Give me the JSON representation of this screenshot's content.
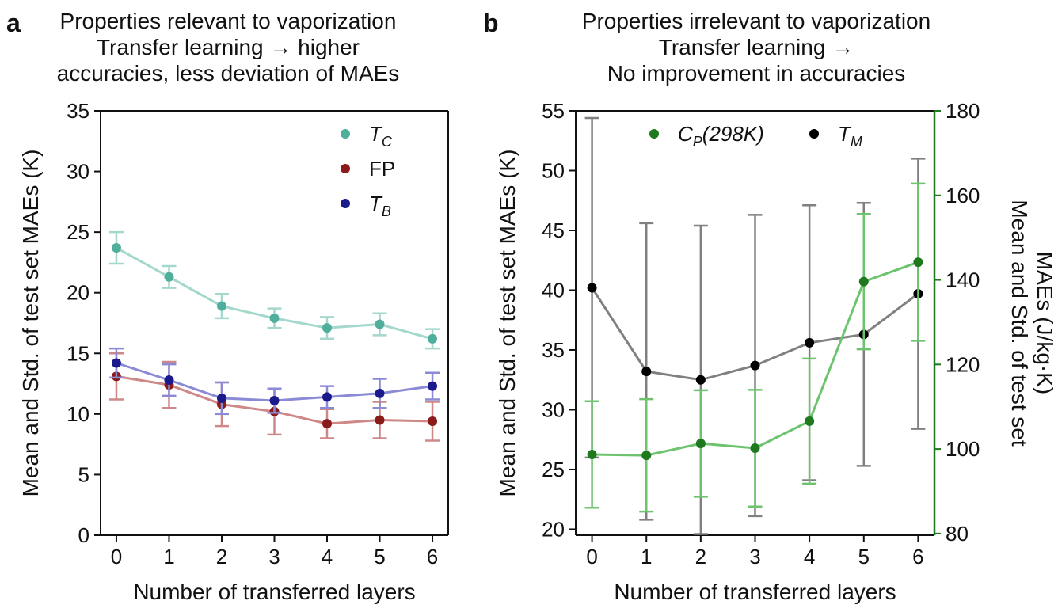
{
  "chart_data": [
    {
      "type": "line",
      "panel_label": "a",
      "title": [
        "Properties relevant to vaporization",
        "Transfer learning → higher",
        "accuracies, less deviation of MAEs"
      ],
      "xlabel": "Number of transferred layers",
      "ylabel": "Mean and Std. of test set MAEs (K)",
      "x": [
        0,
        1,
        2,
        3,
        4,
        5,
        6
      ],
      "xlim": [
        -0.3,
        6.3
      ],
      "ylim": [
        0,
        35
      ],
      "xticks": [
        "0",
        "1",
        "2",
        "3",
        "4",
        "5",
        "6"
      ],
      "yticks": [
        "0",
        "5",
        "10",
        "15",
        "20",
        "25",
        "30",
        "35"
      ],
      "grid": false,
      "legend_position": "top-right",
      "series": [
        {
          "name_main": "T",
          "name_sub": "C",
          "color": "#4fae9c",
          "line_color": "#a4d8cc",
          "values": [
            23.7,
            21.3,
            18.9,
            17.9,
            17.1,
            17.4,
            16.2
          ],
          "errors": [
            1.3,
            0.9,
            1.0,
            0.8,
            0.9,
            0.9,
            0.8
          ]
        },
        {
          "name_main": "FP",
          "name_sub": "",
          "color": "#8b1a1a",
          "line_color": "#cf8888",
          "values": [
            13.1,
            12.4,
            10.8,
            10.2,
            9.2,
            9.5,
            9.4
          ],
          "errors": [
            1.9,
            1.9,
            1.8,
            1.9,
            1.2,
            1.5,
            1.6
          ]
        },
        {
          "name_main": "T",
          "name_sub": "B",
          "color": "#1a1a8c",
          "line_color": "#8a8ad6",
          "values": [
            14.2,
            12.8,
            11.3,
            11.1,
            11.4,
            11.7,
            12.3
          ],
          "errors": [
            1.2,
            1.3,
            1.3,
            1.0,
            0.9,
            1.2,
            1.1
          ]
        }
      ]
    },
    {
      "type": "line",
      "panel_label": "b",
      "title": [
        "Properties irrelevant to vaporization",
        "Transfer learning →",
        "No improvement in accuracies"
      ],
      "xlabel": "Number of transferred layers",
      "ylabel": "Mean and Std. of test set MAEs (K)",
      "ylabel_right": [
        "Mean and Std. of test set",
        "MAEs (J/kg·K)"
      ],
      "x": [
        0,
        1,
        2,
        3,
        4,
        5,
        6
      ],
      "xlim": [
        -0.3,
        6.3
      ],
      "ylim": [
        19.5,
        55
      ],
      "ylim_right": [
        79.6,
        180
      ],
      "xticks": [
        "0",
        "1",
        "2",
        "3",
        "4",
        "5",
        "6"
      ],
      "yticks": [
        "20",
        "25",
        "30",
        "35",
        "40",
        "45",
        "50",
        "55"
      ],
      "yticks_right": [
        "80",
        "100",
        "120",
        "140",
        "160",
        "180"
      ],
      "right_axis_color": "#1f7a1f",
      "grid": false,
      "legend_position": "top-center",
      "series": [
        {
          "name_main": "T",
          "name_sub": "M",
          "axis": "left",
          "color": "#000000",
          "line_color": "#808080",
          "values": [
            40.2,
            33.2,
            32.5,
            33.7,
            35.6,
            36.3,
            39.7
          ],
          "errors": [
            14.2,
            12.4,
            12.9,
            12.6,
            11.5,
            11.0,
            11.3
          ]
        },
        {
          "name_main": "C",
          "name_sub": "P",
          "name_suffix": "(298K)",
          "axis": "right",
          "color": "#1f7a1f",
          "line_color": "#6ec46e",
          "values": [
            98.7,
            98.5,
            101.3,
            100.2,
            106.6,
            139.6,
            144.2
          ],
          "errors": [
            12.6,
            13.3,
            12.6,
            13.8,
            14.8,
            16.0,
            18.6
          ]
        }
      ]
    }
  ]
}
